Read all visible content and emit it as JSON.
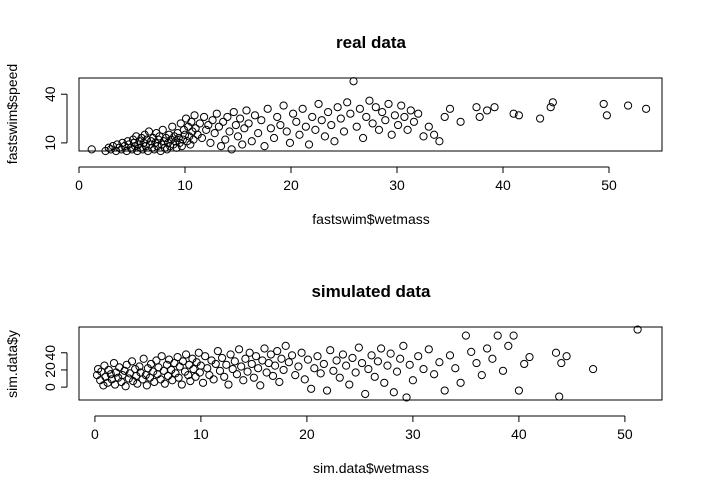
{
  "chart_data": [
    {
      "type": "scatter",
      "title": "real data",
      "xlabel": "fastswim$wetmass",
      "ylabel": "fastswim$speed",
      "xlim": [
        0,
        55
      ],
      "ylim": [
        5,
        50
      ],
      "x_ticks": [
        "0",
        "10",
        "20",
        "30",
        "40",
        "50"
      ],
      "y_ticks": [
        "10",
        "40"
      ],
      "y_tick_values": [
        10,
        40
      ],
      "grid": false,
      "marker": "open-circle",
      "points": [
        [
          1.2,
          6
        ],
        [
          2.5,
          5
        ],
        [
          2.8,
          7
        ],
        [
          3,
          6
        ],
        [
          3.2,
          8
        ],
        [
          3.5,
          5
        ],
        [
          3.6,
          9
        ],
        [
          3.8,
          7
        ],
        [
          4,
          6
        ],
        [
          4.1,
          10
        ],
        [
          4.3,
          8
        ],
        [
          4.5,
          5
        ],
        [
          4.6,
          11
        ],
        [
          4.7,
          9
        ],
        [
          4.9,
          7
        ],
        [
          5,
          6
        ],
        [
          5.1,
          12
        ],
        [
          5.2,
          10
        ],
        [
          5.3,
          8
        ],
        [
          5.4,
          14
        ],
        [
          5.5,
          5
        ],
        [
          5.6,
          9
        ],
        [
          5.7,
          11
        ],
        [
          5.8,
          7
        ],
        [
          5.9,
          13
        ],
        [
          6,
          6
        ],
        [
          6.1,
          10
        ],
        [
          6.2,
          15
        ],
        [
          6.3,
          8
        ],
        [
          6.4,
          12
        ],
        [
          6.5,
          5
        ],
        [
          6.6,
          17
        ],
        [
          6.7,
          9
        ],
        [
          6.8,
          11
        ],
        [
          6.9,
          7
        ],
        [
          7,
          13
        ],
        [
          7.1,
          6
        ],
        [
          7.2,
          10
        ],
        [
          7.3,
          16
        ],
        [
          7.4,
          8
        ],
        [
          7.5,
          12
        ],
        [
          7.6,
          14
        ],
        [
          7.7,
          5
        ],
        [
          7.8,
          9
        ],
        [
          7.9,
          18
        ],
        [
          8,
          11
        ],
        [
          8.1,
          7
        ],
        [
          8.2,
          13
        ],
        [
          8.3,
          6
        ],
        [
          8.4,
          10
        ],
        [
          8.5,
          15
        ],
        [
          8.6,
          8
        ],
        [
          8.7,
          12
        ],
        [
          8.8,
          20
        ],
        [
          8.9,
          9
        ],
        [
          9,
          14
        ],
        [
          9.1,
          11
        ],
        [
          9.2,
          7
        ],
        [
          9.3,
          16
        ],
        [
          9.4,
          13
        ],
        [
          9.5,
          10
        ],
        [
          9.6,
          22
        ],
        [
          9.7,
          8
        ],
        [
          9.8,
          12
        ],
        [
          9.9,
          18
        ],
        [
          10,
          15
        ],
        [
          10.1,
          25
        ],
        [
          10.2,
          11
        ],
        [
          10.3,
          20
        ],
        [
          10.4,
          14
        ],
        [
          10.5,
          9
        ],
        [
          10.6,
          23
        ],
        [
          10.7,
          17
        ],
        [
          10.8,
          12
        ],
        [
          10.9,
          27
        ],
        [
          11,
          19
        ],
        [
          11.2,
          15
        ],
        [
          11.4,
          22
        ],
        [
          11.6,
          13
        ],
        [
          11.8,
          26
        ],
        [
          12,
          18
        ],
        [
          12.2,
          21
        ],
        [
          12.4,
          10
        ],
        [
          12.6,
          24
        ],
        [
          12.8,
          16
        ],
        [
          13,
          28
        ],
        [
          13.2,
          20
        ],
        [
          13.4,
          8
        ],
        [
          13.6,
          23
        ],
        [
          13.8,
          12
        ],
        [
          14,
          26
        ],
        [
          14.2,
          17
        ],
        [
          14.4,
          6
        ],
        [
          14.6,
          29
        ],
        [
          14.8,
          21
        ],
        [
          15,
          14
        ],
        [
          15.2,
          25
        ],
        [
          15.4,
          9
        ],
        [
          15.6,
          19
        ],
        [
          15.8,
          30
        ],
        [
          16,
          22
        ],
        [
          16.3,
          11
        ],
        [
          16.6,
          27
        ],
        [
          16.9,
          16
        ],
        [
          17.2,
          24
        ],
        [
          17.5,
          8
        ],
        [
          17.8,
          31
        ],
        [
          18.1,
          19
        ],
        [
          18.4,
          13
        ],
        [
          18.7,
          26
        ],
        [
          19,
          21
        ],
        [
          19.3,
          33
        ],
        [
          19.6,
          17
        ],
        [
          19.9,
          10
        ],
        [
          20.2,
          28
        ],
        [
          20.5,
          23
        ],
        [
          20.8,
          15
        ],
        [
          21.1,
          31
        ],
        [
          21.4,
          20
        ],
        [
          21.7,
          9
        ],
        [
          22,
          26
        ],
        [
          22.3,
          18
        ],
        [
          22.6,
          34
        ],
        [
          22.9,
          24
        ],
        [
          23.2,
          14
        ],
        [
          23.5,
          29
        ],
        [
          23.8,
          21
        ],
        [
          24.1,
          11
        ],
        [
          24.4,
          32
        ],
        [
          24.7,
          25
        ],
        [
          25,
          17
        ],
        [
          25.3,
          35
        ],
        [
          25.6,
          28
        ],
        [
          25.9,
          48
        ],
        [
          26.2,
          20
        ],
        [
          26.5,
          31
        ],
        [
          26.8,
          13
        ],
        [
          27.1,
          26
        ],
        [
          27.4,
          36
        ],
        [
          27.7,
          22
        ],
        [
          28,
          32
        ],
        [
          28.3,
          18
        ],
        [
          28.6,
          29
        ],
        [
          28.9,
          24
        ],
        [
          29.2,
          34
        ],
        [
          29.5,
          15
        ],
        [
          29.8,
          27
        ],
        [
          30.1,
          21
        ],
        [
          30.4,
          33
        ],
        [
          30.7,
          26
        ],
        [
          31,
          18
        ],
        [
          31.3,
          30
        ],
        [
          31.6,
          23
        ],
        [
          32,
          28
        ],
        [
          32.5,
          14
        ],
        [
          33,
          20
        ],
        [
          33.5,
          15
        ],
        [
          34,
          11
        ],
        [
          34.5,
          26
        ],
        [
          35,
          31
        ],
        [
          36,
          23
        ],
        [
          37.5,
          32
        ],
        [
          37.8,
          26
        ],
        [
          38.5,
          30
        ],
        [
          39.2,
          32
        ],
        [
          41,
          28
        ],
        [
          41.5,
          27
        ],
        [
          43.5,
          25
        ],
        [
          44.5,
          32
        ],
        [
          44.7,
          35
        ],
        [
          49.5,
          34
        ],
        [
          49.8,
          27
        ],
        [
          51.8,
          33
        ],
        [
          53.5,
          31
        ]
      ]
    },
    {
      "type": "scatter",
      "title": "simulated data",
      "xlabel": "sim.data$wetmass",
      "ylabel": "sim.data$y",
      "xlim": [
        -1.5,
        53.5
      ],
      "ylim": [
        -15,
        70
      ],
      "x_ticks": [
        "0",
        "10",
        "20",
        "30",
        "40",
        "50"
      ],
      "y_ticks": [
        "0",
        "20",
        "40"
      ],
      "y_tick_values": [
        0,
        20,
        40
      ],
      "grid": false,
      "marker": "open-circle",
      "points": [
        [
          0.2,
          14
        ],
        [
          0.3,
          21
        ],
        [
          0.5,
          8
        ],
        [
          0.6,
          18
        ],
        [
          0.8,
          2
        ],
        [
          0.9,
          25
        ],
        [
          1,
          12
        ],
        [
          1.2,
          5
        ],
        [
          1.3,
          20
        ],
        [
          1.5,
          15
        ],
        [
          1.6,
          9
        ],
        [
          1.8,
          28
        ],
        [
          1.9,
          3
        ],
        [
          2,
          17
        ],
        [
          2.2,
          11
        ],
        [
          2.3,
          23
        ],
        [
          2.5,
          6
        ],
        [
          2.6,
          14
        ],
        [
          2.8,
          19
        ],
        [
          2.9,
          1
        ],
        [
          3,
          26
        ],
        [
          3.2,
          10
        ],
        [
          3.3,
          16
        ],
        [
          3.5,
          30
        ],
        [
          3.6,
          7
        ],
        [
          3.8,
          21
        ],
        [
          3.9,
          13
        ],
        [
          4,
          4
        ],
        [
          4.2,
          24
        ],
        [
          4.3,
          17
        ],
        [
          4.5,
          9
        ],
        [
          4.6,
          33
        ],
        [
          4.8,
          14
        ],
        [
          4.9,
          2
        ],
        [
          5,
          22
        ],
        [
          5.2,
          11
        ],
        [
          5.3,
          27
        ],
        [
          5.5,
          18
        ],
        [
          5.6,
          6
        ],
        [
          5.8,
          31
        ],
        [
          5.9,
          15
        ],
        [
          6,
          23
        ],
        [
          6.2,
          9
        ],
        [
          6.3,
          36
        ],
        [
          6.5,
          19
        ],
        [
          6.6,
          4
        ],
        [
          6.8,
          26
        ],
        [
          6.9,
          13
        ],
        [
          7,
          32
        ],
        [
          7.2,
          20
        ],
        [
          7.3,
          8
        ],
        [
          7.5,
          28
        ],
        [
          7.6,
          16
        ],
        [
          7.8,
          35
        ],
        [
          7.9,
          11
        ],
        [
          8,
          24
        ],
        [
          8.2,
          3
        ],
        [
          8.3,
          30
        ],
        [
          8.5,
          18
        ],
        [
          8.6,
          38
        ],
        [
          8.8,
          14
        ],
        [
          8.9,
          26
        ],
        [
          9,
          7
        ],
        [
          9.2,
          33
        ],
        [
          9.3,
          21
        ],
        [
          9.5,
          12
        ],
        [
          9.6,
          29
        ],
        [
          9.8,
          40
        ],
        [
          9.9,
          17
        ],
        [
          10,
          25
        ],
        [
          10.2,
          5
        ],
        [
          10.4,
          36
        ],
        [
          10.6,
          22
        ],
        [
          10.8,
          14
        ],
        [
          11,
          31
        ],
        [
          11.2,
          9
        ],
        [
          11.4,
          27
        ],
        [
          11.6,
          42
        ],
        [
          11.8,
          19
        ],
        [
          12,
          34
        ],
        [
          12.2,
          12
        ],
        [
          12.4,
          26
        ],
        [
          12.6,
          3
        ],
        [
          12.8,
          38
        ],
        [
          13,
          21
        ],
        [
          13.2,
          30
        ],
        [
          13.4,
          15
        ],
        [
          13.6,
          44
        ],
        [
          13.8,
          24
        ],
        [
          14,
          8
        ],
        [
          14.2,
          33
        ],
        [
          14.4,
          18
        ],
        [
          14.6,
          40
        ],
        [
          14.8,
          27
        ],
        [
          15,
          11
        ],
        [
          15.2,
          36
        ],
        [
          15.4,
          22
        ],
        [
          15.6,
          2
        ],
        [
          15.8,
          31
        ],
        [
          16,
          45
        ],
        [
          16.2,
          17
        ],
        [
          16.4,
          28
        ],
        [
          16.6,
          38
        ],
        [
          16.8,
          13
        ],
        [
          17,
          25
        ],
        [
          17.2,
          42
        ],
        [
          17.4,
          6
        ],
        [
          17.6,
          33
        ],
        [
          17.8,
          20
        ],
        [
          18,
          48
        ],
        [
          18.3,
          29
        ],
        [
          18.6,
          37
        ],
        [
          18.9,
          14
        ],
        [
          19.2,
          24
        ],
        [
          19.5,
          40
        ],
        [
          19.8,
          9
        ],
        [
          20.1,
          32
        ],
        [
          20.4,
          -2
        ],
        [
          20.7,
          22
        ],
        [
          21,
          36
        ],
        [
          21.3,
          16
        ],
        [
          21.6,
          27
        ],
        [
          21.9,
          -4
        ],
        [
          22.2,
          43
        ],
        [
          22.5,
          19
        ],
        [
          22.8,
          31
        ],
        [
          23.1,
          11
        ],
        [
          23.4,
          38
        ],
        [
          23.7,
          25
        ],
        [
          24,
          3
        ],
        [
          24.3,
          34
        ],
        [
          24.6,
          17
        ],
        [
          24.9,
          46
        ],
        [
          25.2,
          28
        ],
        [
          25.5,
          -8
        ],
        [
          25.8,
          21
        ],
        [
          26.1,
          37
        ],
        [
          26.4,
          12
        ],
        [
          26.7,
          30
        ],
        [
          27,
          45
        ],
        [
          27.3,
          5
        ],
        [
          27.6,
          25
        ],
        [
          27.9,
          39
        ],
        [
          28.2,
          -6
        ],
        [
          28.5,
          18
        ],
        [
          28.8,
          33
        ],
        [
          29.1,
          48
        ],
        [
          29.4,
          -12
        ],
        [
          29.7,
          26
        ],
        [
          30,
          8
        ],
        [
          30.5,
          36
        ],
        [
          31,
          21
        ],
        [
          31.5,
          44
        ],
        [
          32,
          15
        ],
        [
          32.5,
          29
        ],
        [
          33,
          -4
        ],
        [
          33.5,
          37
        ],
        [
          34,
          22
        ],
        [
          34.5,
          5
        ],
        [
          35,
          60
        ],
        [
          35.5,
          41
        ],
        [
          36,
          28
        ],
        [
          36.5,
          14
        ],
        [
          37,
          45
        ],
        [
          37.5,
          33
        ],
        [
          38,
          60
        ],
        [
          38.5,
          19
        ],
        [
          39,
          48
        ],
        [
          39.5,
          60
        ],
        [
          40,
          -4
        ],
        [
          40.5,
          27
        ],
        [
          41,
          35
        ],
        [
          43.5,
          40
        ],
        [
          43.8,
          -11
        ],
        [
          44,
          28
        ],
        [
          44.5,
          36
        ],
        [
          47,
          21
        ],
        [
          51.2,
          67
        ]
      ]
    }
  ]
}
